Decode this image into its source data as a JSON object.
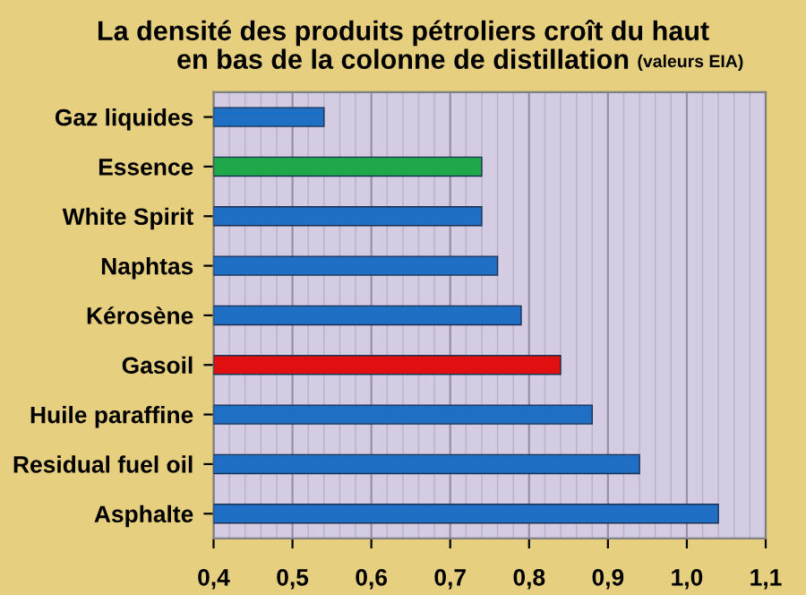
{
  "chart_data": {
    "type": "bar",
    "orientation": "horizontal",
    "title": "La densité des produits pétroliers croît du haut\nen bas de la colonne de distillation",
    "subtitle": "(valeurs EIA)",
    "categories": [
      "Gaz liquides",
      "Essence",
      "White Spirit",
      "Naphtas",
      "Kérosène",
      "Gasoil",
      "Huile paraffine",
      "Residual fuel oil",
      "Asphalte"
    ],
    "values": [
      0.54,
      0.74,
      0.74,
      0.76,
      0.79,
      0.84,
      0.88,
      0.94,
      1.04
    ],
    "colors": [
      "#1f6fc4",
      "#1fa84a",
      "#1f6fc4",
      "#1f6fc4",
      "#1f6fc4",
      "#e01010",
      "#1f6fc4",
      "#1f6fc4",
      "#1f6fc4"
    ],
    "xlim": [
      0.4,
      1.1
    ],
    "xticks": [
      {
        "value": 0.4,
        "label": "0,4"
      },
      {
        "value": 0.42,
        "label": null
      },
      {
        "value": 0.44,
        "label": null
      },
      {
        "value": 0.46,
        "label": null
      },
      {
        "value": 0.48,
        "label": null
      },
      {
        "value": 0.5,
        "label": "0,5"
      },
      {
        "value": 0.52,
        "label": null
      },
      {
        "value": 0.54,
        "label": null
      },
      {
        "value": 0.56,
        "label": null
      },
      {
        "value": 0.58,
        "label": null
      },
      {
        "value": 0.6,
        "label": "0,6"
      },
      {
        "value": 0.62,
        "label": null
      },
      {
        "value": 0.64,
        "label": null
      },
      {
        "value": 0.66,
        "label": null
      },
      {
        "value": 0.68,
        "label": null
      },
      {
        "value": 0.7,
        "label": "0,7"
      },
      {
        "value": 0.72,
        "label": null
      },
      {
        "value": 0.74,
        "label": null
      },
      {
        "value": 0.76,
        "label": null
      },
      {
        "value": 0.78,
        "label": null
      },
      {
        "value": 0.8,
        "label": "0,8"
      },
      {
        "value": 0.82,
        "label": null
      },
      {
        "value": 0.84,
        "label": null
      },
      {
        "value": 0.86,
        "label": null
      },
      {
        "value": 0.88,
        "label": null
      },
      {
        "value": 0.9,
        "label": "0,9"
      },
      {
        "value": 0.92,
        "label": null
      },
      {
        "value": 0.94,
        "label": null
      },
      {
        "value": 0.96,
        "label": null
      },
      {
        "value": 0.98,
        "label": null
      },
      {
        "value": 1.0,
        "label": "1,0"
      },
      {
        "value": 1.02,
        "label": null
      },
      {
        "value": 1.04,
        "label": null
      },
      {
        "value": 1.06,
        "label": null
      },
      {
        "value": 1.08,
        "label": null
      },
      {
        "value": 1.1,
        "label": "1,1"
      }
    ],
    "grid": "x",
    "legend": false
  }
}
